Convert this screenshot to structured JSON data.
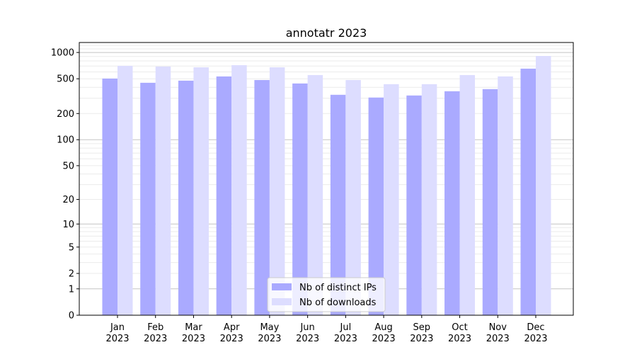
{
  "chart_data": {
    "type": "bar",
    "title": "annotatr 2023",
    "xlabel": "",
    "ylabel": "",
    "yscale": "log(1+x)",
    "ylim": [
      0,
      1300
    ],
    "yticks": [
      0,
      1,
      2,
      5,
      10,
      20,
      50,
      100,
      200,
      500,
      1000
    ],
    "ytick_labels": [
      "0",
      "1",
      "2",
      "5",
      "10",
      "20",
      "50",
      "100",
      "200",
      "500",
      "1000"
    ],
    "categories": [
      "Jan",
      "Feb",
      "Mar",
      "Apr",
      "May",
      "Jun",
      "Jul",
      "Aug",
      "Sep",
      "Oct",
      "Nov",
      "Dec"
    ],
    "category_year": "2023",
    "grid": true,
    "legend_position": "bottom-center",
    "series": [
      {
        "name": "Nb of distinct IPs",
        "color": "#aaaaff",
        "values": [
          503,
          450,
          476,
          532,
          484,
          442,
          328,
          305,
          322,
          360,
          381,
          653
        ]
      },
      {
        "name": "Nb of downloads",
        "color": "#ddddff",
        "values": [
          703,
          690,
          677,
          716,
          677,
          552,
          484,
          434,
          434,
          552,
          532,
          912
        ]
      }
    ]
  }
}
